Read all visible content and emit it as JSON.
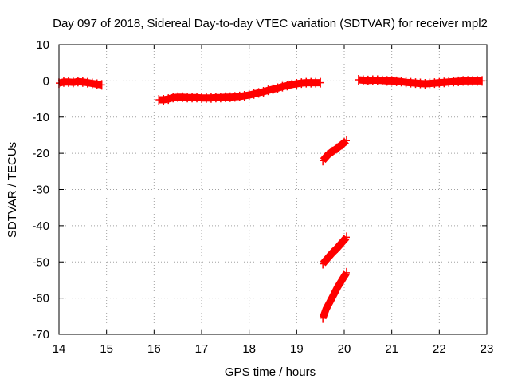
{
  "chart_data": {
    "type": "scatter",
    "title": "Day 097 of 2018, Sidereal Day-to-day VTEC variation (SDTVAR) for receiver mpl2",
    "xlabel": "GPS time / hours",
    "ylabel": "SDTVAR / TECUs",
    "xlim": [
      14,
      23
    ],
    "ylim": [
      -70,
      10
    ],
    "xticks": [
      14,
      15,
      16,
      17,
      18,
      19,
      20,
      21,
      22,
      23
    ],
    "yticks": [
      10,
      0,
      -10,
      -20,
      -30,
      -40,
      -50,
      -60,
      -70
    ],
    "grid": true,
    "legend": "none",
    "series_color": "#ff0000",
    "series": [
      {
        "points": [
          [
            14.0,
            -0.6
          ],
          [
            14.1,
            -0.3
          ],
          [
            14.2,
            -0.3
          ],
          [
            14.3,
            -0.4
          ],
          [
            14.4,
            -0.2
          ],
          [
            14.5,
            -0.3
          ],
          [
            14.6,
            -0.5
          ],
          [
            14.7,
            -0.7
          ],
          [
            14.8,
            -0.9
          ],
          [
            14.9,
            -1.1
          ]
        ]
      },
      {
        "points": [
          [
            16.1,
            -5.2
          ],
          [
            16.2,
            -5.2
          ],
          [
            16.3,
            -5.0
          ],
          [
            16.4,
            -4.6
          ],
          [
            16.5,
            -4.5
          ],
          [
            16.6,
            -4.5
          ],
          [
            16.7,
            -4.6
          ],
          [
            16.8,
            -4.6
          ],
          [
            16.9,
            -4.6
          ],
          [
            17.0,
            -4.7
          ],
          [
            17.1,
            -4.7
          ],
          [
            17.2,
            -4.7
          ],
          [
            17.3,
            -4.6
          ],
          [
            17.4,
            -4.6
          ],
          [
            17.5,
            -4.5
          ],
          [
            17.6,
            -4.5
          ],
          [
            17.7,
            -4.4
          ],
          [
            17.8,
            -4.3
          ],
          [
            17.9,
            -4.1
          ],
          [
            18.0,
            -3.9
          ],
          [
            18.1,
            -3.6
          ],
          [
            18.2,
            -3.3
          ],
          [
            18.3,
            -3.0
          ],
          [
            18.4,
            -2.6
          ],
          [
            18.5,
            -2.3
          ],
          [
            18.6,
            -2.0
          ],
          [
            18.7,
            -1.6
          ],
          [
            18.8,
            -1.3
          ],
          [
            18.9,
            -1.0
          ],
          [
            19.0,
            -0.8
          ],
          [
            19.1,
            -0.6
          ],
          [
            19.2,
            -0.5
          ],
          [
            19.3,
            -0.5
          ],
          [
            19.4,
            -0.5
          ],
          [
            19.5,
            -0.5
          ]
        ]
      },
      {
        "points": [
          [
            19.55,
            -22.0
          ],
          [
            19.65,
            -20.5
          ],
          [
            19.75,
            -19.5
          ],
          [
            19.85,
            -18.6
          ],
          [
            19.95,
            -17.6
          ],
          [
            20.05,
            -16.5
          ]
        ]
      },
      {
        "points": [
          [
            19.55,
            -50.5
          ],
          [
            19.65,
            -49.0
          ],
          [
            19.75,
            -47.5
          ],
          [
            19.85,
            -46.2
          ],
          [
            19.95,
            -44.7
          ],
          [
            20.05,
            -43.2
          ]
        ]
      },
      {
        "points": [
          [
            19.55,
            -65.5
          ],
          [
            19.62,
            -63.0
          ],
          [
            19.7,
            -61.0
          ],
          [
            19.78,
            -59.0
          ],
          [
            19.86,
            -57.0
          ],
          [
            19.94,
            -55.3
          ],
          [
            20.0,
            -54.0
          ],
          [
            20.05,
            -53.0
          ]
        ]
      },
      {
        "points": [
          [
            20.3,
            0.3
          ],
          [
            20.4,
            0.2
          ],
          [
            20.5,
            0.1
          ],
          [
            20.6,
            0.2
          ],
          [
            20.7,
            0.2
          ],
          [
            20.8,
            0.1
          ],
          [
            20.9,
            0.0
          ],
          [
            21.0,
            0.0
          ],
          [
            21.1,
            -0.1
          ],
          [
            21.2,
            -0.2
          ],
          [
            21.3,
            -0.4
          ],
          [
            21.4,
            -0.5
          ],
          [
            21.5,
            -0.6
          ],
          [
            21.6,
            -0.7
          ],
          [
            21.7,
            -0.8
          ],
          [
            21.8,
            -0.7
          ],
          [
            21.9,
            -0.6
          ],
          [
            22.0,
            -0.5
          ],
          [
            22.1,
            -0.4
          ],
          [
            22.2,
            -0.3
          ],
          [
            22.3,
            -0.2
          ],
          [
            22.4,
            -0.1
          ],
          [
            22.5,
            0.0
          ],
          [
            22.6,
            0.0
          ],
          [
            22.7,
            0.0
          ],
          [
            22.8,
            0.0
          ],
          [
            22.9,
            0.0
          ]
        ]
      }
    ]
  }
}
